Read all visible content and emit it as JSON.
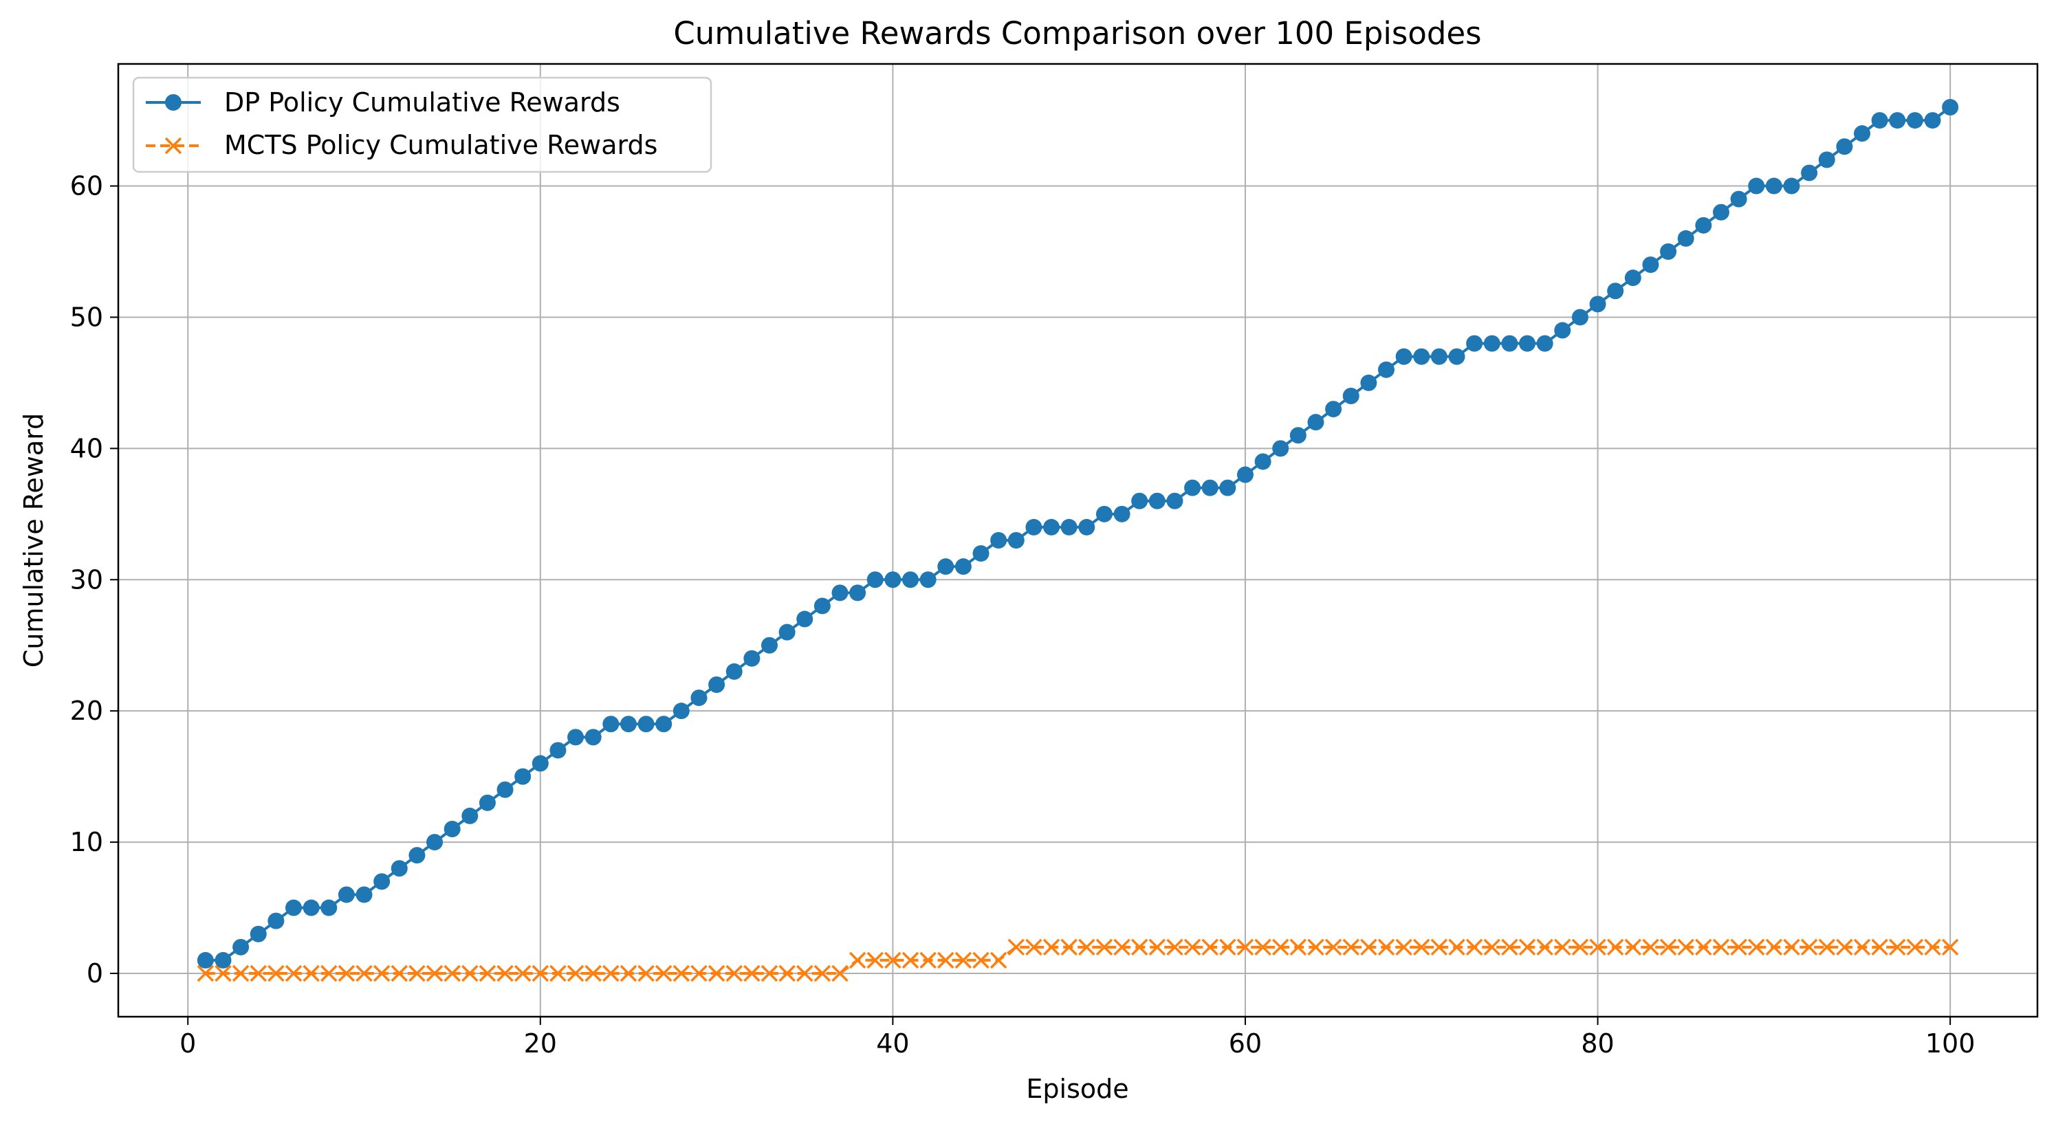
{
  "chart_data": {
    "type": "line",
    "title": "Cumulative Rewards Comparison over 100 Episodes",
    "xlabel": "Episode",
    "ylabel": "Cumulative Reward",
    "xlim": [
      -3.95,
      104.95
    ],
    "ylim": [
      -3.3,
      69.3
    ],
    "xticks": [
      0,
      20,
      40,
      60,
      80,
      100
    ],
    "yticks": [
      0,
      10,
      20,
      30,
      40,
      50,
      60
    ],
    "grid": true,
    "legend_position": "top-left",
    "x": [
      1,
      2,
      3,
      4,
      5,
      6,
      7,
      8,
      9,
      10,
      11,
      12,
      13,
      14,
      15,
      16,
      17,
      18,
      19,
      20,
      21,
      22,
      23,
      24,
      25,
      26,
      27,
      28,
      29,
      30,
      31,
      32,
      33,
      34,
      35,
      36,
      37,
      38,
      39,
      40,
      41,
      42,
      43,
      44,
      45,
      46,
      47,
      48,
      49,
      50,
      51,
      52,
      53,
      54,
      55,
      56,
      57,
      58,
      59,
      60,
      61,
      62,
      63,
      64,
      65,
      66,
      67,
      68,
      69,
      70,
      71,
      72,
      73,
      74,
      75,
      76,
      77,
      78,
      79,
      80,
      81,
      82,
      83,
      84,
      85,
      86,
      87,
      88,
      89,
      90,
      91,
      92,
      93,
      94,
      95,
      96,
      97,
      98,
      99,
      100
    ],
    "series": [
      {
        "name": "DP Policy Cumulative Rewards",
        "color": "#1f77b4",
        "marker": "circle",
        "line_style": "solid",
        "values": [
          1,
          1,
          2,
          3,
          4,
          5,
          5,
          5,
          6,
          6,
          7,
          8,
          9,
          10,
          11,
          12,
          13,
          14,
          15,
          16,
          17,
          18,
          18,
          19,
          19,
          19,
          19,
          20,
          21,
          22,
          23,
          24,
          25,
          26,
          27,
          28,
          29,
          29,
          30,
          30,
          30,
          30,
          31,
          31,
          32,
          33,
          33,
          34,
          34,
          34,
          34,
          35,
          35,
          36,
          36,
          36,
          37,
          37,
          37,
          38,
          39,
          40,
          41,
          42,
          43,
          44,
          45,
          46,
          47,
          47,
          47,
          47,
          48,
          48,
          48,
          48,
          48,
          49,
          50,
          51,
          52,
          53,
          54,
          55,
          56,
          57,
          58,
          59,
          60,
          60,
          60,
          61,
          62,
          63,
          64,
          65,
          65,
          65,
          65,
          66
        ]
      },
      {
        "name": "MCTS Policy Cumulative Rewards",
        "color": "#ff7f0e",
        "marker": "x",
        "line_style": "dashed",
        "values": [
          0,
          0,
          0,
          0,
          0,
          0,
          0,
          0,
          0,
          0,
          0,
          0,
          0,
          0,
          0,
          0,
          0,
          0,
          0,
          0,
          0,
          0,
          0,
          0,
          0,
          0,
          0,
          0,
          0,
          0,
          0,
          0,
          0,
          0,
          0,
          0,
          0,
          1,
          1,
          1,
          1,
          1,
          1,
          1,
          1,
          1,
          2,
          2,
          2,
          2,
          2,
          2,
          2,
          2,
          2,
          2,
          2,
          2,
          2,
          2,
          2,
          2,
          2,
          2,
          2,
          2,
          2,
          2,
          2,
          2,
          2,
          2,
          2,
          2,
          2,
          2,
          2,
          2,
          2,
          2,
          2,
          2,
          2,
          2,
          2,
          2,
          2,
          2,
          2,
          2,
          2,
          2,
          2,
          2,
          2,
          2,
          2,
          2,
          2,
          2
        ]
      }
    ]
  }
}
